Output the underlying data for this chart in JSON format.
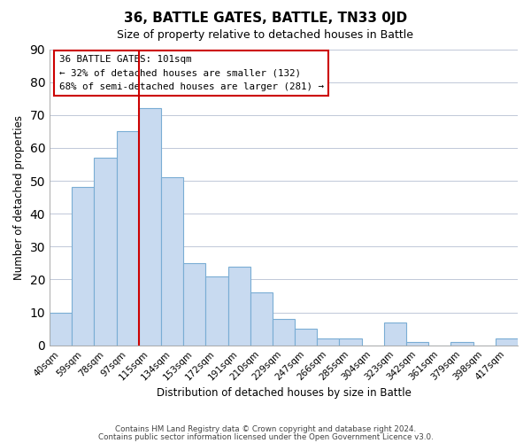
{
  "title": "36, BATTLE GATES, BATTLE, TN33 0JD",
  "subtitle": "Size of property relative to detached houses in Battle",
  "xlabel": "Distribution of detached houses by size in Battle",
  "ylabel": "Number of detached properties",
  "bar_labels": [
    "40sqm",
    "59sqm",
    "78sqm",
    "97sqm",
    "115sqm",
    "134sqm",
    "153sqm",
    "172sqm",
    "191sqm",
    "210sqm",
    "229sqm",
    "247sqm",
    "266sqm",
    "285sqm",
    "304sqm",
    "323sqm",
    "342sqm",
    "361sqm",
    "379sqm",
    "398sqm",
    "417sqm"
  ],
  "bar_heights": [
    10,
    48,
    57,
    65,
    72,
    51,
    25,
    21,
    24,
    16,
    8,
    5,
    2,
    2,
    0,
    7,
    1,
    0,
    1,
    0,
    2
  ],
  "bar_color": "#c8daf0",
  "bar_edge_color": "#7aadd4",
  "grid_color": "#c0c8d8",
  "vline_x": 3.5,
  "vline_color": "#cc0000",
  "ylim": [
    0,
    90
  ],
  "yticks": [
    0,
    10,
    20,
    30,
    40,
    50,
    60,
    70,
    80,
    90
  ],
  "annotation_title": "36 BATTLE GATES: 101sqm",
  "annotation_line1": "← 32% of detached houses are smaller (132)",
  "annotation_line2": "68% of semi-detached houses are larger (281) →",
  "footer1": "Contains HM Land Registry data © Crown copyright and database right 2024.",
  "footer2": "Contains public sector information licensed under the Open Government Licence v3.0."
}
